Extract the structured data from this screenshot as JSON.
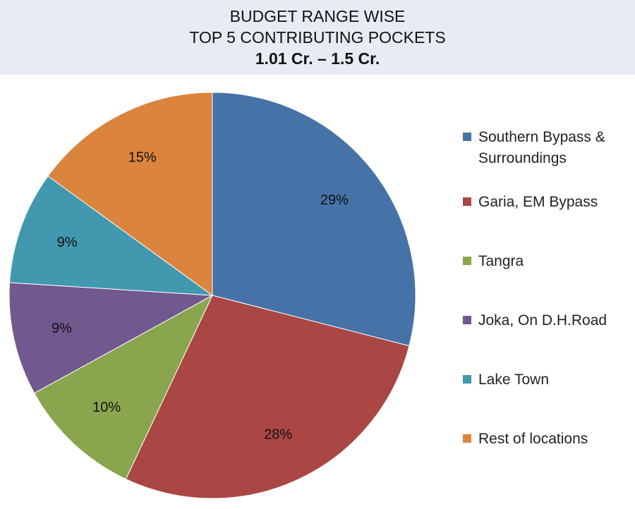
{
  "header": {
    "line1": "BUDGET RANGE WISE",
    "line2": "TOP 5 CONTRIBUTING POCKETS",
    "line3": "1.01 Cr. – 1.5 Cr."
  },
  "chart_data": {
    "type": "pie",
    "title": "BUDGET RANGE WISE TOP 5 CONTRIBUTING POCKETS 1.01 Cr. – 1.5 Cr.",
    "legend_position": "right",
    "slices": [
      {
        "label": "Southern Bypass & Surroundings",
        "value": 29,
        "value_label": "29%",
        "color": "#4572a7"
      },
      {
        "label": "Garia, EM Bypass",
        "value": 28,
        "value_label": "28%",
        "color": "#aa4643"
      },
      {
        "label": "Tangra",
        "value": 10,
        "value_label": "10%",
        "color": "#89a54e"
      },
      {
        "label": "Joka, On D.H.Road",
        "value": 9,
        "value_label": "9%",
        "color": "#71588f"
      },
      {
        "label": "Lake Town",
        "value": 9,
        "value_label": "9%",
        "color": "#4198af"
      },
      {
        "label": "Rest of locations",
        "value": 15,
        "value_label": "15%",
        "color": "#db843d"
      }
    ]
  }
}
